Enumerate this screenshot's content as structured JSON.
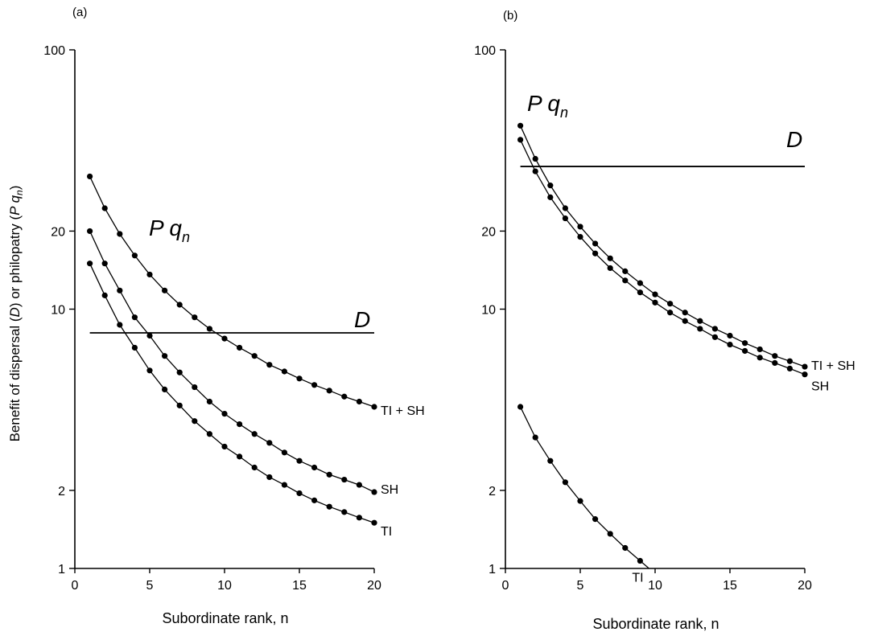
{
  "ylabel": "Benefit of dispersal (D) or philopatry (P qn)",
  "chart_data": [
    {
      "panel_label": "(a)",
      "type": "line",
      "xlabel": "Subordinate rank, n",
      "ylabel": "Benefit of dispersal (D) or philopatry (P qn)",
      "xlim": [
        0,
        20
      ],
      "ylim": [
        1,
        100
      ],
      "yscale": "log",
      "xticks": [
        0,
        5,
        10,
        15,
        20
      ],
      "yticks": [
        1,
        2,
        10,
        20,
        100
      ],
      "grid": false,
      "curve_annotation": "P q_n",
      "series": [
        {
          "name": "TI + SH",
          "x": [
            1,
            2,
            3,
            4,
            5,
            6,
            7,
            8,
            9,
            10,
            11,
            12,
            13,
            14,
            15,
            16,
            17,
            18,
            19,
            20
          ],
          "values": [
            32.5,
            24.5,
            19.5,
            16.1,
            13.6,
            11.8,
            10.4,
            9.3,
            8.4,
            7.7,
            7.1,
            6.6,
            6.1,
            5.75,
            5.4,
            5.1,
            4.85,
            4.6,
            4.4,
            4.2
          ]
        },
        {
          "name": "SH",
          "x": [
            1,
            2,
            3,
            4,
            5,
            6,
            7,
            8,
            9,
            10,
            11,
            12,
            13,
            14,
            15,
            16,
            17,
            18,
            19,
            20
          ],
          "values": [
            20,
            15,
            11.8,
            9.3,
            7.9,
            6.6,
            5.7,
            5.0,
            4.4,
            3.95,
            3.6,
            3.3,
            3.05,
            2.8,
            2.6,
            2.45,
            2.3,
            2.2,
            2.1,
            1.97
          ]
        },
        {
          "name": "TI",
          "x": [
            1,
            2,
            3,
            4,
            5,
            6,
            7,
            8,
            9,
            10,
            11,
            12,
            13,
            14,
            15,
            16,
            17,
            18,
            19,
            20
          ],
          "values": [
            15,
            11.3,
            8.7,
            7.1,
            5.8,
            4.9,
            4.25,
            3.7,
            3.3,
            2.95,
            2.7,
            2.45,
            2.25,
            2.1,
            1.95,
            1.83,
            1.73,
            1.65,
            1.57,
            1.5
          ]
        }
      ],
      "reference_line": {
        "label": "D",
        "value": 8.1,
        "x": [
          1,
          20
        ]
      }
    },
    {
      "panel_label": "(b)",
      "type": "line",
      "xlabel": "Subordinate rank, n",
      "ylabel": "",
      "xlim": [
        0,
        20
      ],
      "ylim": [
        1,
        100
      ],
      "yscale": "log",
      "xticks": [
        0,
        5,
        10,
        15,
        20
      ],
      "yticks": [
        1,
        2,
        10,
        20,
        100
      ],
      "grid": false,
      "curve_annotation": "P q_n",
      "series": [
        {
          "name": "TI + SH",
          "x": [
            1,
            2,
            3,
            4,
            5,
            6,
            7,
            8,
            9,
            10,
            11,
            12,
            13,
            14,
            15,
            16,
            17,
            18,
            19,
            20
          ],
          "values": [
            51,
            38,
            30,
            24.5,
            20.8,
            17.9,
            15.7,
            14.0,
            12.6,
            11.4,
            10.5,
            9.7,
            9.0,
            8.4,
            7.9,
            7.4,
            7.0,
            6.6,
            6.3,
            6.0
          ]
        },
        {
          "name": "SH",
          "x": [
            1,
            2,
            3,
            4,
            5,
            6,
            7,
            8,
            9,
            10,
            11,
            12,
            13,
            14,
            15,
            16,
            17,
            18,
            19,
            20
          ],
          "values": [
            45,
            34,
            27,
            22.4,
            19.0,
            16.4,
            14.4,
            12.9,
            11.6,
            10.6,
            9.7,
            9.0,
            8.4,
            7.8,
            7.3,
            6.9,
            6.5,
            6.2,
            5.9,
            5.6
          ]
        },
        {
          "name": "TI",
          "x": [
            1,
            2,
            3,
            4,
            5,
            6,
            7,
            8,
            9
          ],
          "values": [
            4.2,
            3.2,
            2.6,
            2.15,
            1.82,
            1.55,
            1.36,
            1.2,
            1.07
          ]
        }
      ],
      "reference_line": {
        "label": "D",
        "value": 35.5,
        "x": [
          1,
          20
        ]
      }
    }
  ]
}
